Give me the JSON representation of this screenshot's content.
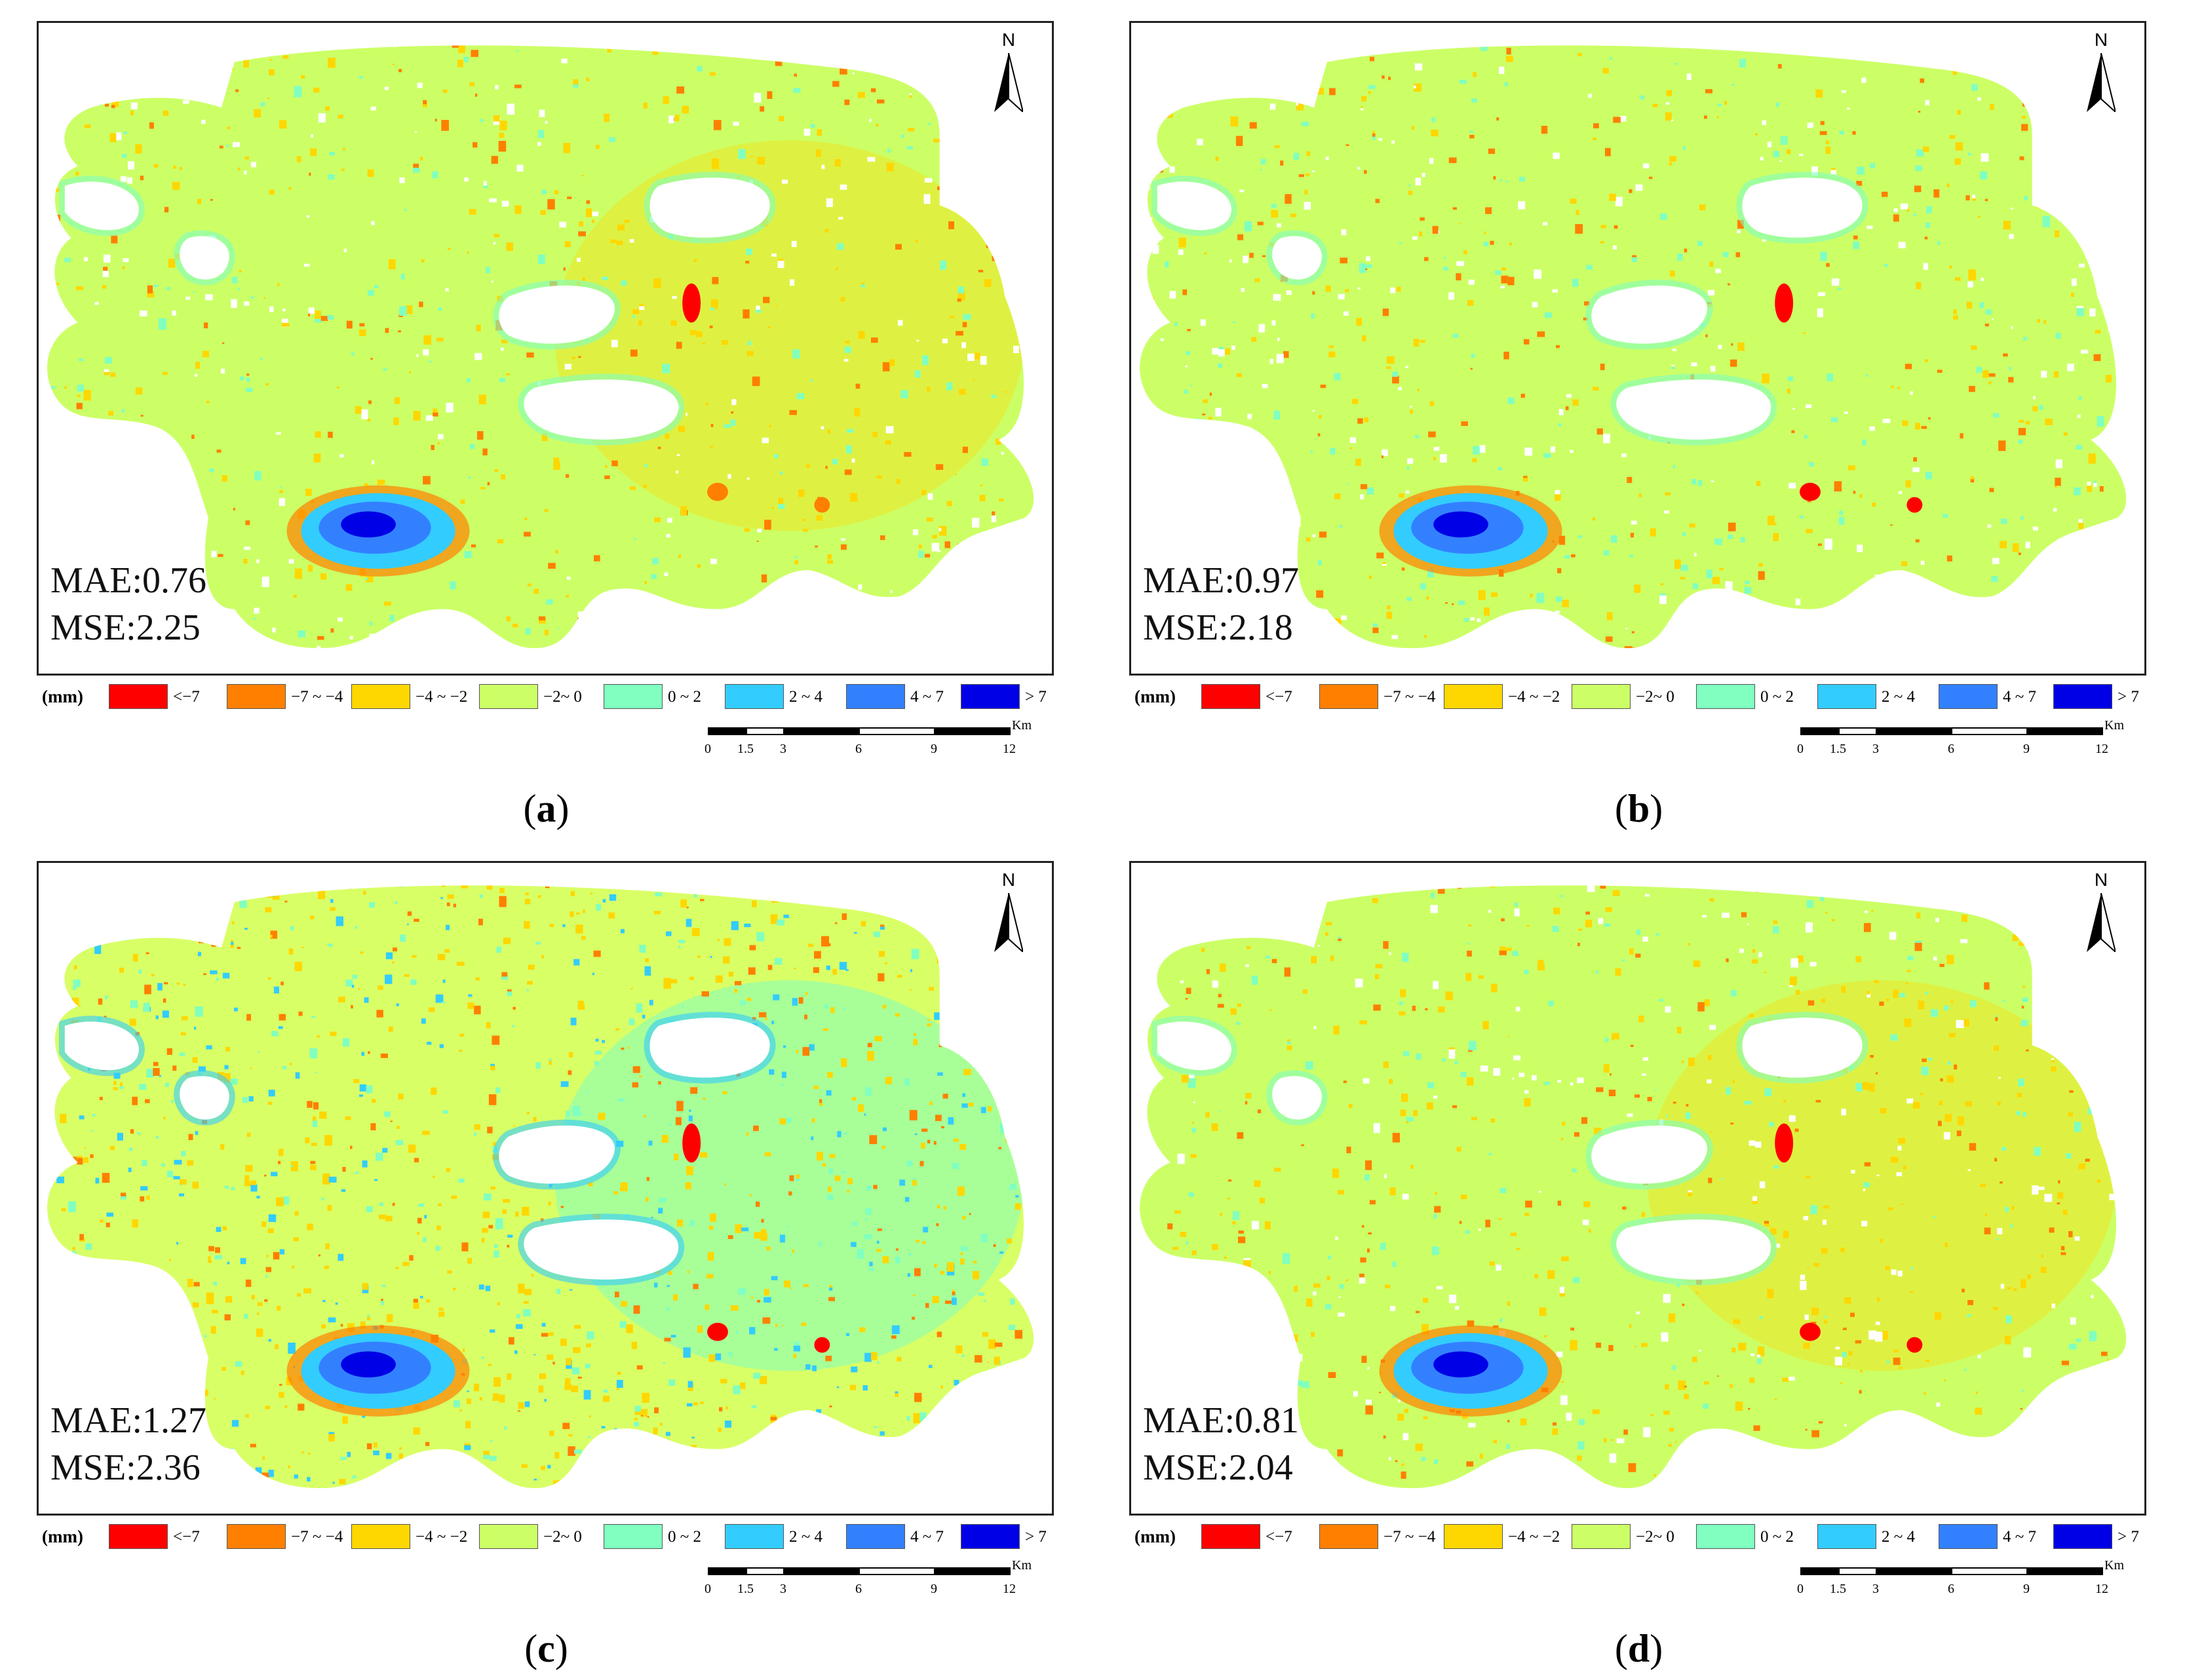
{
  "colors": {
    "class_lt_minus7": "#ff0000",
    "class_minus7_minus4": "#ff8000",
    "class_minus4_minus2": "#ffd700",
    "class_minus2_0": "#ccff66",
    "class_0_2": "#80ffc0",
    "class_2_4": "#33ccff",
    "class_4_7": "#3380ff",
    "class_gt7": "#0000e6",
    "nodata": "#ffffff"
  },
  "legend": {
    "unit": "(mm)",
    "items": [
      {
        "label": "<−7",
        "color": "#ff0000"
      },
      {
        "label": "−7 ~ −4",
        "color": "#ff8000"
      },
      {
        "label": "−4 ~ −2",
        "color": "#ffd700"
      },
      {
        "label": "−2~ 0",
        "color": "#ccff66"
      },
      {
        "label": "0 ~ 2",
        "color": "#80ffc0"
      },
      {
        "label": "2 ~ 4",
        "color": "#33ccff"
      },
      {
        "label": "4 ~ 7",
        "color": "#3380ff"
      },
      {
        "label": "> 7",
        "color": "#0000e6"
      }
    ]
  },
  "scale_bar": {
    "unit": "Km",
    "ticks": [
      "0",
      "1.5",
      "3",
      "6",
      "9",
      "12"
    ]
  },
  "north_label": "N",
  "panels": [
    {
      "id": "a",
      "caption_letter": "a",
      "mae": "MAE:0.76",
      "mse": "MSE:2.25",
      "base_color": "#ccff66",
      "east_tint": "#ffd700"
    },
    {
      "id": "b",
      "caption_letter": "b",
      "mae": "MAE:0.97",
      "mse": "MSE:2.18",
      "base_color": "#ccff66",
      "east_tint": "#ccff66"
    },
    {
      "id": "c",
      "caption_letter": "c",
      "mae": "MAE:1.27",
      "mse": "MSE:2.36",
      "base_color": "#d9ff66",
      "east_tint": "#80ffc0"
    },
    {
      "id": "d",
      "caption_letter": "d",
      "mae": "MAE:0.81",
      "mse": "MSE:2.04",
      "base_color": "#ccff66",
      "east_tint": "#ffd700"
    }
  ]
}
